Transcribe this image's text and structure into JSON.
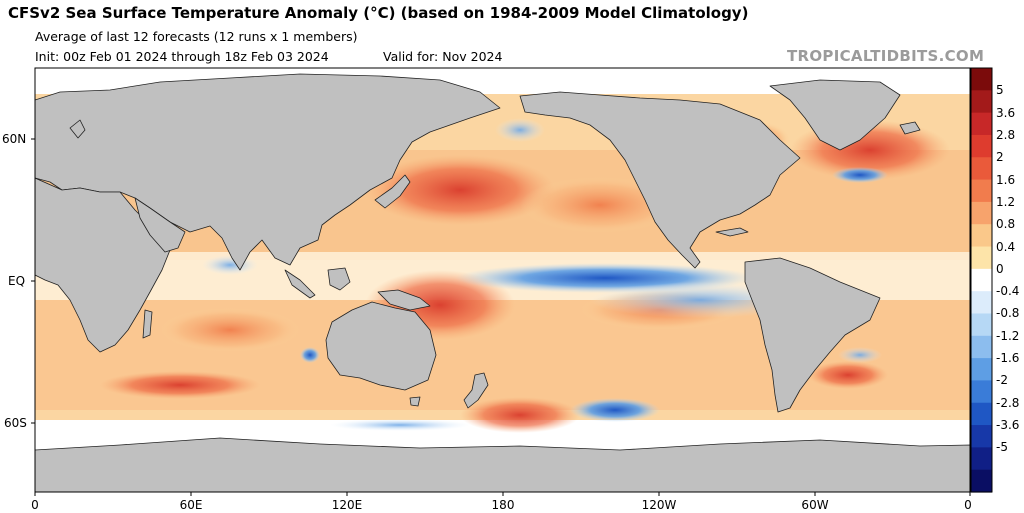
{
  "header": {
    "title": "CFSv2 Sea Surface Temperature Anomaly (°C) (based on 1984-2009 Model Climatology)",
    "subtitle": "Average of last 12 forecasts (12 runs x 1 members)",
    "init": "Init: 00z Feb 01 2024 through 18z Feb 03 2024",
    "valid": "Valid for: Nov 2024",
    "brand": "TROPICALTIDBITS.COM"
  },
  "map": {
    "lat_labels": [
      "60N",
      "EQ",
      "60S"
    ],
    "lon_labels": [
      "0",
      "60E",
      "120E",
      "180",
      "120W",
      "60W",
      "0"
    ],
    "land_color": "#c0c0c0",
    "coast_color": "#222222"
  },
  "colorbar": {
    "labels": [
      "5",
      "3.6",
      "2.8",
      "2",
      "1.6",
      "1.2",
      "0.8",
      "0.4",
      "0",
      "-0.4",
      "-0.8",
      "-1.2",
      "-1.6",
      "-2",
      "-2.8",
      "-3.6",
      "-5"
    ],
    "colors": [
      "#7b0b0b",
      "#a31a1a",
      "#c72828",
      "#de3c2e",
      "#ea5a3a",
      "#f17c4d",
      "#f7a36c",
      "#fac88a",
      "#fde4a9",
      "#ffffff",
      "#dcecfb",
      "#b6d8f5",
      "#8cbdee",
      "#5e9ee4",
      "#3a7cd8",
      "#1f57c4",
      "#1738a8",
      "#101f86",
      "#0a0e63"
    ]
  }
}
